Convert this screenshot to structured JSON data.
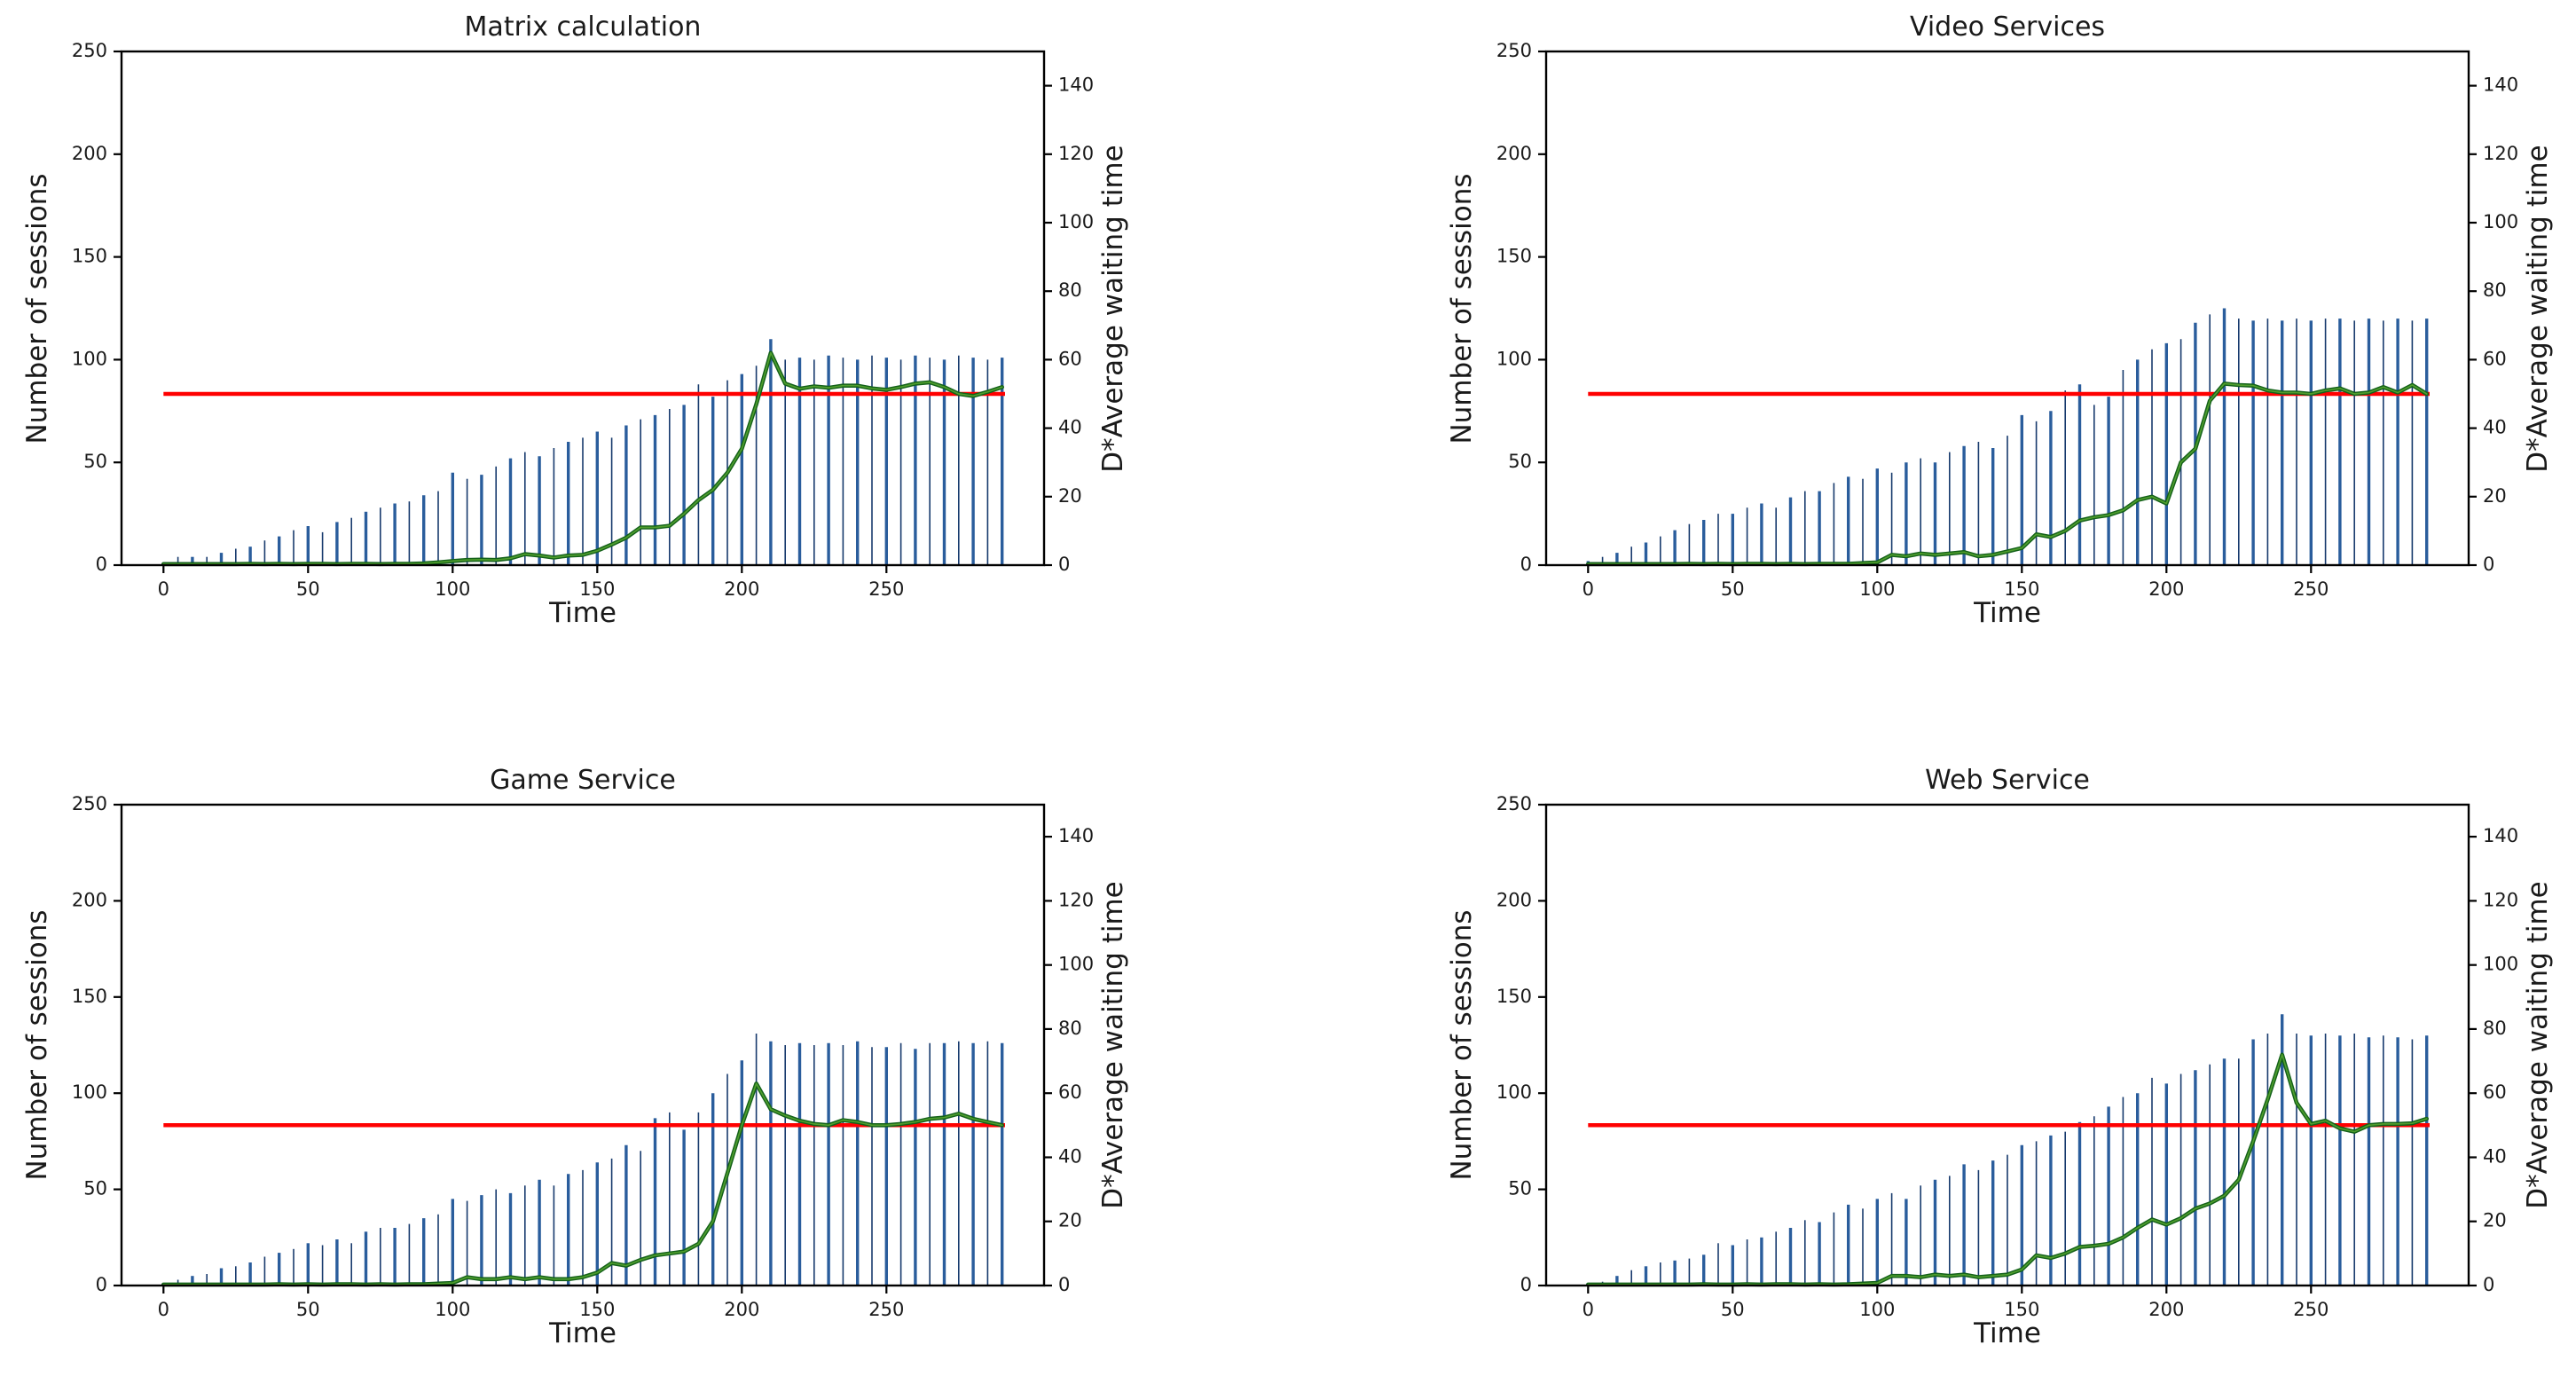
{
  "page": {
    "background": "#ffffff"
  },
  "colors": {
    "bar_thick": "#2a5d9c",
    "bar_thin": "#173a6d",
    "avg_line_dark": "#14611a",
    "avg_line_bright": "#4f9e2d",
    "threshold_line": "#ff0000",
    "axis": "#000000",
    "tick_text": "#1a1a1a"
  },
  "chart_data": [
    {
      "type": "bar",
      "title": "Matrix calculation",
      "xlabel": "Time",
      "ylabel_left": "Number of sessions",
      "ylabel_right": "D*Average waiting time",
      "xlim": [
        -14.5,
        304.5
      ],
      "ylim_left": [
        0,
        250
      ],
      "ylim_right": [
        0,
        150
      ],
      "xticks": [
        0,
        50,
        100,
        150,
        200,
        250
      ],
      "yticks_left": [
        0,
        50,
        100,
        150,
        200,
        250
      ],
      "yticks_right": [
        0,
        20,
        40,
        60,
        80,
        100,
        120,
        140
      ],
      "grid": false,
      "legend": null,
      "t_start": 0,
      "t_step": 5,
      "threshold": 50,
      "series": [
        {
          "name": "sessions",
          "axis": "left",
          "kind": "bars",
          "values": [
            1,
            4,
            4,
            4,
            6,
            8,
            9,
            12,
            14,
            17,
            19,
            16,
            21,
            23,
            26,
            28,
            30,
            31,
            34,
            36,
            45,
            42,
            44,
            48,
            52,
            55,
            53,
            57,
            60,
            62,
            65,
            62,
            68,
            71,
            73,
            76,
            78,
            88,
            82,
            90,
            93,
            97,
            110,
            100,
            101,
            100,
            102,
            101,
            100,
            102,
            101,
            100,
            102,
            101,
            100,
            102,
            101,
            100,
            101
          ]
        },
        {
          "name": "avg_wait",
          "axis": "right",
          "kind": "line",
          "values": [
            0.3,
            0.3,
            0.3,
            0.3,
            0.3,
            0.3,
            0.4,
            0.3,
            0.4,
            0.3,
            0.4,
            0.4,
            0.3,
            0.4,
            0.4,
            0.3,
            0.4,
            0.4,
            0.5,
            0.8,
            1.2,
            1.5,
            1.6,
            1.5,
            2,
            3.2,
            2.8,
            2.2,
            2.8,
            3,
            4.2,
            6,
            8,
            11,
            11,
            11.5,
            15,
            19,
            22,
            27,
            34,
            47,
            62,
            53,
            51.5,
            52.2,
            51.8,
            52.4,
            52.4,
            51.6,
            51.2,
            52,
            53,
            53.4,
            52,
            50,
            49.4,
            50.6,
            52
          ]
        }
      ]
    },
    {
      "type": "bar",
      "title": "Video Services",
      "xlabel": "Time",
      "ylabel_left": "Number of sessions",
      "ylabel_right": "D*Average waiting time",
      "xlim": [
        -14.5,
        304.5
      ],
      "ylim_left": [
        0,
        250
      ],
      "ylim_right": [
        0,
        150
      ],
      "xticks": [
        0,
        50,
        100,
        150,
        200,
        250
      ],
      "yticks_left": [
        0,
        50,
        100,
        150,
        200,
        250
      ],
      "yticks_right": [
        0,
        20,
        40,
        60,
        80,
        100,
        120,
        140
      ],
      "grid": false,
      "legend": null,
      "t_start": 0,
      "t_step": 5,
      "threshold": 50,
      "series": [
        {
          "name": "sessions",
          "axis": "left",
          "kind": "bars",
          "values": [
            2,
            4,
            6,
            9,
            11,
            14,
            17,
            20,
            22,
            25,
            25,
            28,
            30,
            28,
            33,
            36,
            36,
            40,
            43,
            42,
            47,
            45,
            50,
            52,
            50,
            55,
            58,
            60,
            57,
            63,
            73,
            70,
            75,
            85,
            88,
            78,
            82,
            95,
            100,
            105,
            108,
            110,
            118,
            122,
            125,
            120,
            119,
            120,
            119,
            120,
            119,
            120,
            120,
            119,
            120,
            119,
            120,
            119,
            120
          ]
        },
        {
          "name": "avg_wait",
          "axis": "right",
          "kind": "line",
          "values": [
            0.3,
            0.3,
            0.3,
            0.3,
            0.3,
            0.3,
            0.3,
            0.4,
            0.3,
            0.4,
            0.3,
            0.4,
            0.4,
            0.3,
            0.4,
            0.3,
            0.4,
            0.4,
            0.4,
            0.6,
            0.8,
            3,
            2.6,
            3.4,
            3,
            3.4,
            3.8,
            2.6,
            3,
            4,
            5,
            9,
            8.2,
            10,
            13,
            14,
            14.6,
            16,
            19,
            20,
            18,
            30,
            34,
            48,
            53,
            52.6,
            52.4,
            51,
            50.4,
            50.4,
            50,
            51,
            51.6,
            50,
            50.4,
            52,
            50.4,
            52.6,
            50
          ]
        }
      ]
    },
    {
      "type": "bar",
      "title": "Game Service",
      "xlabel": "Time",
      "ylabel_left": "Number of sessions",
      "ylabel_right": "D*Average waiting time",
      "xlim": [
        -14.5,
        304.5
      ],
      "ylim_left": [
        0,
        250
      ],
      "ylim_right": [
        0,
        150
      ],
      "xticks": [
        0,
        50,
        100,
        150,
        200,
        250
      ],
      "yticks_left": [
        0,
        50,
        100,
        150,
        200,
        250
      ],
      "yticks_right": [
        0,
        20,
        40,
        60,
        80,
        100,
        120,
        140
      ],
      "grid": false,
      "legend": null,
      "t_start": 0,
      "t_step": 5,
      "threshold": 50,
      "series": [
        {
          "name": "sessions",
          "axis": "left",
          "kind": "bars",
          "values": [
            1,
            3,
            5,
            6,
            9,
            10,
            12,
            15,
            17,
            19,
            22,
            21,
            24,
            22,
            28,
            30,
            30,
            32,
            35,
            37,
            45,
            44,
            47,
            50,
            48,
            52,
            55,
            52,
            58,
            60,
            64,
            66,
            73,
            70,
            87,
            90,
            81,
            90,
            100,
            110,
            117,
            131,
            127,
            125,
            126,
            125,
            126,
            125,
            127,
            124,
            124,
            126,
            123,
            126,
            126,
            127,
            126,
            127,
            126
          ]
        },
        {
          "name": "avg_wait",
          "axis": "right",
          "kind": "line",
          "values": [
            0.3,
            0.3,
            0.3,
            0.3,
            0.3,
            0.3,
            0.3,
            0.3,
            0.4,
            0.3,
            0.4,
            0.3,
            0.4,
            0.4,
            0.3,
            0.4,
            0.3,
            0.4,
            0.4,
            0.6,
            0.8,
            2.6,
            2,
            2,
            2.6,
            2,
            2.6,
            2,
            2,
            2.6,
            4,
            7,
            6.2,
            8,
            9.4,
            10,
            10.6,
            13,
            20,
            35,
            50,
            63,
            55,
            53,
            51.4,
            50.4,
            50,
            51.6,
            51,
            50,
            50,
            50.4,
            51,
            52,
            52.4,
            53.6,
            52,
            51,
            50
          ]
        }
      ]
    },
    {
      "type": "bar",
      "title": "Web Service",
      "xlabel": "Time",
      "ylabel_left": "Number of sessions",
      "ylabel_right": "D*Average waiting time",
      "xlim": [
        -14.5,
        304.5
      ],
      "ylim_left": [
        0,
        250
      ],
      "ylim_right": [
        0,
        150
      ],
      "xticks": [
        0,
        50,
        100,
        150,
        200,
        250
      ],
      "yticks_left": [
        0,
        50,
        100,
        150,
        200,
        250
      ],
      "yticks_right": [
        0,
        20,
        40,
        60,
        80,
        100,
        120,
        140
      ],
      "grid": false,
      "legend": null,
      "t_start": 0,
      "t_step": 5,
      "threshold": 50,
      "series": [
        {
          "name": "sessions",
          "axis": "left",
          "kind": "bars",
          "values": [
            1,
            2,
            5,
            8,
            10,
            12,
            13,
            14,
            16,
            22,
            21,
            24,
            25,
            28,
            30,
            34,
            33,
            38,
            42,
            40,
            45,
            48,
            45,
            52,
            55,
            57,
            63,
            60,
            65,
            68,
            73,
            75,
            78,
            80,
            85,
            88,
            93,
            98,
            100,
            108,
            105,
            110,
            112,
            115,
            118,
            118,
            128,
            131,
            141,
            131,
            130,
            131,
            130,
            131,
            129,
            130,
            129,
            128,
            130
          ]
        },
        {
          "name": "avg_wait",
          "axis": "right",
          "kind": "line",
          "values": [
            0.3,
            0.3,
            0.3,
            0.3,
            0.3,
            0.3,
            0.3,
            0.3,
            0.4,
            0.3,
            0.3,
            0.4,
            0.3,
            0.4,
            0.4,
            0.3,
            0.4,
            0.3,
            0.4,
            0.6,
            0.8,
            3,
            3,
            2.6,
            3.4,
            3,
            3.4,
            2.6,
            3,
            3.4,
            5,
            9.4,
            8.6,
            10,
            12,
            12.4,
            13,
            15,
            18,
            20.6,
            19,
            21,
            24,
            25.6,
            28,
            33,
            45,
            58,
            72,
            57,
            50.4,
            51.4,
            49,
            48,
            50,
            50.4,
            50.4,
            50.6,
            52
          ]
        }
      ]
    }
  ]
}
